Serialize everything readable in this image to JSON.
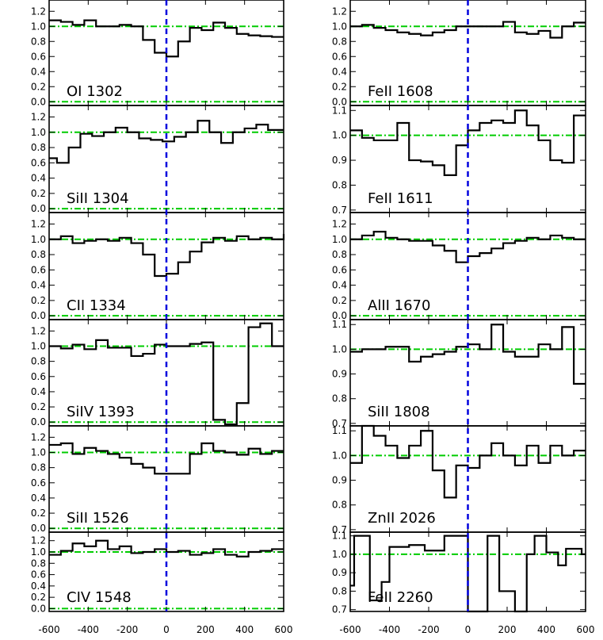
{
  "chart_data": {
    "type": "line",
    "step": true,
    "xlim": [
      -600,
      600
    ],
    "x_ticks": [
      -600,
      -400,
      -200,
      0,
      200,
      400,
      600
    ],
    "x_tick_labels": [
      "-600",
      "-400",
      "-200",
      "0",
      "200",
      "400",
      "600"
    ],
    "reference_lines": {
      "continuum": {
        "y": 1.0,
        "color": "#00cc00",
        "style": "dash-dot"
      },
      "zero_flux": {
        "y": 0.0,
        "color": "#00cc00",
        "style": "dash-dot"
      },
      "zero_velocity": {
        "x": 0,
        "color": "#0000dd",
        "style": "dashed"
      }
    },
    "data_color": "#000000",
    "columns": [
      [
        {
          "label": "OI 1302",
          "ylim": [
            -0.05,
            1.35
          ],
          "yticks": [
            "0.0",
            "0.2",
            "0.4",
            "0.6",
            "0.8",
            "1.0",
            "1.2"
          ],
          "ytick_values": [
            0,
            0.2,
            0.4,
            0.6,
            0.8,
            1.0,
            1.2
          ],
          "x": [
            -600,
            -540,
            -480,
            -420,
            -360,
            -300,
            -240,
            -180,
            -120,
            -60,
            0,
            60,
            120,
            180,
            240,
            300,
            360,
            420,
            480,
            540,
            600
          ],
          "y": [
            1.08,
            1.06,
            1.02,
            1.08,
            1.0,
            1.0,
            1.02,
            1.0,
            0.82,
            0.65,
            0.6,
            0.8,
            0.98,
            0.95,
            1.05,
            0.98,
            0.9,
            0.88,
            0.87,
            0.86,
            0.86
          ]
        },
        {
          "label": "SiII 1304",
          "ylim": [
            -0.05,
            1.35
          ],
          "yticks": [
            "0.0",
            "0.2",
            "0.4",
            "0.6",
            "0.8",
            "1.0",
            "1.2"
          ],
          "ytick_values": [
            0,
            0.2,
            0.4,
            0.6,
            0.8,
            1.0,
            1.2
          ],
          "x": [
            -600,
            -560,
            -500,
            -440,
            -380,
            -320,
            -260,
            -200,
            -140,
            -80,
            -20,
            40,
            100,
            160,
            220,
            280,
            340,
            400,
            460,
            520,
            580,
            600
          ],
          "y": [
            0.66,
            0.6,
            0.8,
            0.98,
            0.95,
            1.0,
            1.06,
            1.0,
            0.92,
            0.9,
            0.88,
            0.94,
            1.0,
            1.15,
            1.0,
            0.86,
            1.0,
            1.05,
            1.1,
            1.03,
            1.03,
            1.03
          ]
        },
        {
          "label": "CII 1334",
          "ylim": [
            -0.05,
            1.35
          ],
          "yticks": [
            "0.0",
            "0.2",
            "0.4",
            "0.6",
            "0.8",
            "1.0",
            "1.2"
          ],
          "ytick_values": [
            0,
            0.2,
            0.4,
            0.6,
            0.8,
            1.0,
            1.2
          ],
          "x": [
            -600,
            -540,
            -480,
            -420,
            -360,
            -300,
            -240,
            -180,
            -120,
            -60,
            0,
            60,
            120,
            180,
            240,
            300,
            360,
            420,
            480,
            540,
            600
          ],
          "y": [
            1.0,
            1.04,
            0.95,
            0.98,
            1.0,
            0.98,
            1.02,
            0.95,
            0.8,
            0.52,
            0.55,
            0.7,
            0.84,
            0.96,
            1.02,
            0.98,
            1.04,
            1.0,
            1.02,
            1.0,
            1.07
          ]
        },
        {
          "label": "SiIV 1393",
          "ylim": [
            -0.05,
            1.35
          ],
          "yticks": [
            "0.0",
            "0.2",
            "0.4",
            "0.6",
            "0.8",
            "1.0",
            "1.2"
          ],
          "ytick_values": [
            0,
            0.2,
            0.4,
            0.6,
            0.8,
            1.0,
            1.2
          ],
          "x": [
            -600,
            -540,
            -480,
            -420,
            -360,
            -300,
            -240,
            -180,
            -120,
            -60,
            0,
            60,
            120,
            180,
            240,
            300,
            360,
            420,
            480,
            540,
            600
          ],
          "y": [
            1.0,
            0.97,
            1.02,
            0.96,
            1.08,
            0.98,
            0.98,
            0.87,
            0.9,
            1.02,
            1.0,
            1.0,
            1.03,
            1.05,
            0.03,
            -0.03,
            0.25,
            1.25,
            1.3,
            1.0,
            1.0
          ]
        },
        {
          "label": "SiII 1526",
          "ylim": [
            -0.05,
            1.35
          ],
          "yticks": [
            "0.0",
            "0.2",
            "0.4",
            "0.6",
            "0.8",
            "1.0",
            "1.2"
          ],
          "ytick_values": [
            0,
            0.2,
            0.4,
            0.6,
            0.8,
            1.0,
            1.2
          ],
          "x": [
            -600,
            -540,
            -480,
            -420,
            -360,
            -300,
            -240,
            -180,
            -120,
            -60,
            0,
            60,
            120,
            180,
            240,
            300,
            360,
            420,
            480,
            540,
            600
          ],
          "y": [
            1.1,
            1.12,
            0.98,
            1.06,
            1.02,
            0.98,
            0.93,
            0.85,
            0.8,
            0.72,
            0.72,
            0.72,
            0.98,
            1.12,
            1.02,
            1.0,
            0.97,
            1.05,
            0.98,
            1.02,
            1.02
          ]
        },
        {
          "label": "CIV 1548",
          "ylim": [
            -0.05,
            1.35
          ],
          "yticks": [
            "0.0",
            "0.2",
            "0.4",
            "0.6",
            "0.8",
            "1.0",
            "1.2"
          ],
          "ytick_values": [
            0,
            0.2,
            0.4,
            0.6,
            0.8,
            1.0,
            1.2
          ],
          "x": [
            -600,
            -540,
            -480,
            -420,
            -360,
            -300,
            -240,
            -180,
            -120,
            -60,
            0,
            60,
            120,
            180,
            240,
            300,
            360,
            420,
            480,
            540,
            600
          ],
          "y": [
            0.95,
            1.02,
            1.15,
            1.1,
            1.2,
            1.05,
            1.1,
            0.98,
            1.0,
            1.05,
            1.0,
            1.02,
            0.95,
            0.98,
            1.05,
            0.95,
            0.92,
            1.0,
            1.02,
            1.05,
            1.05
          ]
        }
      ],
      [
        {
          "label": "FeII 1608",
          "ylim": [
            -0.05,
            1.35
          ],
          "yticks": [
            "0.0",
            "0.2",
            "0.4",
            "0.6",
            "0.8",
            "1.0",
            "1.2"
          ],
          "ytick_values": [
            0,
            0.2,
            0.4,
            0.6,
            0.8,
            1.0,
            1.2
          ],
          "x": [
            -600,
            -540,
            -480,
            -420,
            -360,
            -300,
            -240,
            -180,
            -120,
            -60,
            0,
            60,
            120,
            180,
            240,
            300,
            360,
            420,
            480,
            540,
            600
          ],
          "y": [
            1.0,
            1.02,
            0.98,
            0.95,
            0.92,
            0.9,
            0.88,
            0.92,
            0.95,
            1.0,
            1.0,
            1.0,
            1.0,
            1.06,
            0.92,
            0.9,
            0.94,
            0.85,
            1.0,
            1.05,
            1.05
          ]
        },
        {
          "label": "FeII 1611",
          "ylim": [
            0.69,
            1.12
          ],
          "yticks": [
            "0.7",
            "0.8",
            "0.9",
            "1.0",
            "1.1"
          ],
          "ytick_values": [
            0.7,
            0.8,
            0.9,
            1.0,
            1.1
          ],
          "x": [
            -600,
            -540,
            -480,
            -420,
            -360,
            -300,
            -240,
            -180,
            -120,
            -60,
            0,
            60,
            120,
            180,
            240,
            300,
            360,
            420,
            480,
            540,
            580,
            600
          ],
          "y": [
            1.02,
            0.99,
            0.98,
            0.98,
            1.05,
            0.9,
            0.895,
            0.88,
            0.84,
            0.96,
            1.02,
            1.05,
            1.06,
            1.05,
            1.1,
            1.04,
            0.98,
            0.9,
            0.89,
            1.08,
            1.08,
            1.08
          ]
        },
        {
          "label": "AlII 1670",
          "ylim": [
            -0.05,
            1.35
          ],
          "yticks": [
            "0.0",
            "0.2",
            "0.4",
            "0.6",
            "0.8",
            "1.0",
            "1.2"
          ],
          "ytick_values": [
            0,
            0.2,
            0.4,
            0.6,
            0.8,
            1.0,
            1.2
          ],
          "x": [
            -600,
            -540,
            -480,
            -420,
            -360,
            -300,
            -240,
            -180,
            -120,
            -60,
            0,
            60,
            120,
            180,
            240,
            300,
            360,
            420,
            480,
            540,
            600
          ],
          "y": [
            1.0,
            1.05,
            1.1,
            1.02,
            1.0,
            0.98,
            0.98,
            0.92,
            0.85,
            0.7,
            0.78,
            0.82,
            0.88,
            0.95,
            0.98,
            1.02,
            1.0,
            1.05,
            1.02,
            1.0,
            1.0
          ]
        },
        {
          "label": "SiII 1808",
          "ylim": [
            0.69,
            1.12
          ],
          "yticks": [
            "0.7",
            "0.8",
            "0.9",
            "1.0",
            "1.1"
          ],
          "ytick_values": [
            0.7,
            0.8,
            0.9,
            1.0,
            1.1
          ],
          "x": [
            -600,
            -540,
            -480,
            -420,
            -360,
            -300,
            -240,
            -180,
            -120,
            -60,
            0,
            60,
            120,
            180,
            240,
            300,
            360,
            420,
            480,
            540,
            580,
            600
          ],
          "y": [
            0.99,
            1.0,
            1.0,
            1.01,
            1.01,
            0.95,
            0.97,
            0.98,
            0.99,
            1.01,
            1.02,
            1.0,
            1.1,
            0.99,
            0.97,
            0.97,
            1.02,
            1.0,
            1.09,
            0.86,
            0.86,
            0.86
          ]
        },
        {
          "label": "ZnII 2026",
          "ylim": [
            0.69,
            1.12
          ],
          "yticks": [
            "0.7",
            "0.8",
            "0.9",
            "1.0",
            "1.1"
          ],
          "ytick_values": [
            0.7,
            0.8,
            0.9,
            1.0,
            1.1
          ],
          "x": [
            -600,
            -540,
            -480,
            -420,
            -360,
            -300,
            -240,
            -180,
            -120,
            -60,
            0,
            60,
            120,
            180,
            240,
            300,
            360,
            420,
            480,
            540,
            600
          ],
          "y": [
            0.97,
            1.12,
            1.08,
            1.04,
            0.99,
            1.04,
            1.1,
            0.94,
            0.83,
            0.96,
            0.95,
            1.0,
            1.05,
            1.0,
            0.96,
            1.04,
            0.97,
            1.04,
            1.0,
            1.02,
            1.02
          ]
        },
        {
          "label": "FeII 2260",
          "ylim": [
            0.69,
            1.12
          ],
          "yticks": [
            "0.7",
            "0.8",
            "0.9",
            "1.0",
            "1.1"
          ],
          "ytick_values": [
            0.7,
            0.8,
            0.9,
            1.0,
            1.1
          ],
          "x": [
            -600,
            -580,
            -500,
            -440,
            -400,
            -300,
            -220,
            -120,
            0,
            100,
            160,
            240,
            300,
            340,
            400,
            460,
            500,
            580,
            600
          ],
          "y": [
            0.83,
            1.1,
            0.75,
            0.85,
            1.04,
            1.05,
            1.02,
            1.1,
            0.69,
            1.1,
            0.8,
            0.69,
            1.0,
            1.1,
            1.01,
            0.94,
            1.03,
            1.0,
            1.0
          ]
        }
      ]
    ]
  }
}
